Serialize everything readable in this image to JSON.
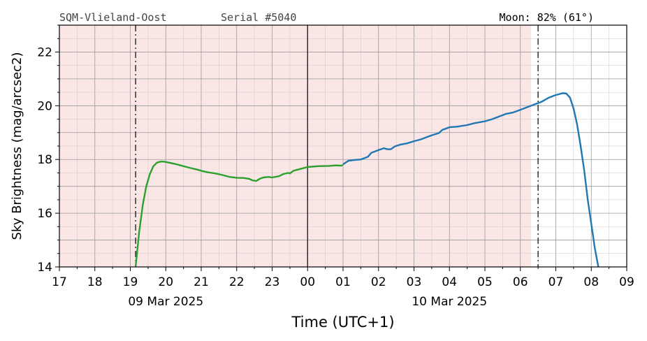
{
  "header": {
    "station": "SQM-Vlieland-Oost",
    "serial": "Serial #5040",
    "moon": "Moon: 82% (61°)"
  },
  "chart_data": {
    "type": "line",
    "title": "",
    "xlabel": "Time (UTC+1)",
    "ylabel": "Sky Brightness (mag/arcsec2)",
    "ylim": [
      14,
      23
    ],
    "xlim": [
      17,
      33
    ],
    "x_unit": "hours since 09 Mar 2025 00:00 (UTC+1)",
    "x_tick_labels": [
      "17",
      "18",
      "19",
      "20",
      "21",
      "22",
      "23",
      "00",
      "01",
      "02",
      "03",
      "04",
      "05",
      "06",
      "07",
      "08",
      "09"
    ],
    "y_tick_labels": [
      "14",
      "16",
      "18",
      "20",
      "22"
    ],
    "date_labels": [
      {
        "text": "09 Mar 2025",
        "x": 20.0
      },
      {
        "text": "10 Mar 2025",
        "x": 28.0
      }
    ],
    "grid": true,
    "night_shading": {
      "from": 17.0,
      "to": 30.3,
      "color": "#fbe6e6"
    },
    "vlines": [
      {
        "x": 19.15,
        "style": "dashdot"
      },
      {
        "x": 24.0,
        "style": "solid"
      },
      {
        "x": 30.5,
        "style": "dashdot"
      }
    ],
    "series": [
      {
        "color": "#2ca02c",
        "points": [
          [
            19.15,
            14.0
          ],
          [
            19.25,
            15.3
          ],
          [
            19.35,
            16.3
          ],
          [
            19.45,
            17.0
          ],
          [
            19.55,
            17.45
          ],
          [
            19.65,
            17.75
          ],
          [
            19.75,
            17.88
          ],
          [
            19.85,
            17.92
          ],
          [
            19.95,
            17.92
          ],
          [
            20.1,
            17.88
          ],
          [
            20.3,
            17.82
          ],
          [
            20.5,
            17.75
          ],
          [
            20.7,
            17.68
          ],
          [
            20.9,
            17.62
          ],
          [
            21.0,
            17.58
          ],
          [
            21.2,
            17.52
          ],
          [
            21.4,
            17.48
          ],
          [
            21.6,
            17.42
          ],
          [
            21.8,
            17.35
          ],
          [
            22.0,
            17.32
          ],
          [
            22.2,
            17.31
          ],
          [
            22.35,
            17.28
          ],
          [
            22.45,
            17.22
          ],
          [
            22.55,
            17.2
          ],
          [
            22.65,
            17.28
          ],
          [
            22.75,
            17.33
          ],
          [
            22.9,
            17.35
          ],
          [
            23.0,
            17.33
          ],
          [
            23.2,
            17.38
          ],
          [
            23.3,
            17.45
          ],
          [
            23.45,
            17.5
          ],
          [
            23.5,
            17.48
          ],
          [
            23.6,
            17.58
          ],
          [
            23.8,
            17.65
          ],
          [
            24.0,
            17.72
          ],
          [
            24.3,
            17.75
          ],
          [
            24.6,
            17.76
          ],
          [
            24.8,
            17.78
          ],
          [
            24.95,
            17.77
          ],
          [
            25.0,
            17.8
          ]
        ]
      },
      {
        "color": "#1f77b4",
        "points": [
          [
            25.0,
            17.82
          ],
          [
            25.15,
            17.95
          ],
          [
            25.3,
            17.98
          ],
          [
            25.5,
            18.0
          ],
          [
            25.7,
            18.1
          ],
          [
            25.8,
            18.25
          ],
          [
            26.0,
            18.35
          ],
          [
            26.15,
            18.42
          ],
          [
            26.25,
            18.38
          ],
          [
            26.35,
            18.38
          ],
          [
            26.45,
            18.48
          ],
          [
            26.6,
            18.55
          ],
          [
            26.8,
            18.6
          ],
          [
            27.0,
            18.68
          ],
          [
            27.2,
            18.75
          ],
          [
            27.4,
            18.85
          ],
          [
            27.5,
            18.9
          ],
          [
            27.7,
            18.98
          ],
          [
            27.8,
            19.1
          ],
          [
            28.0,
            19.2
          ],
          [
            28.2,
            19.22
          ],
          [
            28.5,
            19.28
          ],
          [
            28.7,
            19.35
          ],
          [
            29.0,
            19.42
          ],
          [
            29.2,
            19.5
          ],
          [
            29.4,
            19.6
          ],
          [
            29.6,
            19.7
          ],
          [
            29.8,
            19.75
          ],
          [
            30.0,
            19.85
          ],
          [
            30.2,
            19.95
          ],
          [
            30.4,
            20.05
          ],
          [
            30.6,
            20.15
          ],
          [
            30.8,
            20.3
          ],
          [
            31.0,
            20.4
          ],
          [
            31.2,
            20.47
          ],
          [
            31.3,
            20.45
          ],
          [
            31.4,
            20.3
          ],
          [
            31.5,
            19.9
          ],
          [
            31.6,
            19.3
          ],
          [
            31.7,
            18.5
          ],
          [
            31.8,
            17.6
          ],
          [
            31.9,
            16.5
          ],
          [
            32.0,
            15.6
          ],
          [
            32.1,
            14.7
          ],
          [
            32.2,
            14.0
          ]
        ]
      }
    ]
  }
}
